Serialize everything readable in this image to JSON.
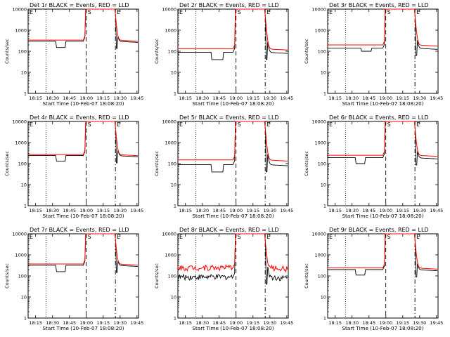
{
  "figure": {
    "description": "RHESSI detector count rates, 3x3 grid",
    "legend_text": "BLACK = Events, RED = LLD"
  },
  "chart_data": [
    {
      "type": "line",
      "title": "Det 1r BLACK = Events, RED = LLD",
      "xlabel": "Start Time (10-Feb-07 18:08:20)",
      "ylabel": "Counts/sec",
      "yscale": "log",
      "ylim": [
        1,
        10000
      ],
      "xticks": [
        "18:15",
        "18:30",
        "18:45",
        "19:00",
        "19:15",
        "19:30",
        "19:45"
      ],
      "yticks": [
        "1",
        "10",
        "100",
        "1000",
        "10000"
      ],
      "markers": [
        {
          "label": "E",
          "t": 0
        },
        {
          "label": "S",
          "t": 52
        },
        {
          "label": "E",
          "t": 82
        }
      ],
      "series": [
        {
          "name": "Events",
          "color": "#000000",
          "base": 300,
          "dip": [
            25,
            33,
            150
          ]
        },
        {
          "name": "LLD",
          "color": "#ff0000",
          "base": 340
        }
      ]
    },
    {
      "type": "line",
      "title": "Det 2r BLACK = Events, RED = LLD",
      "xlabel": "Start Time (10-Feb-07 18:08:20)",
      "ylabel": "Counts/sec",
      "yscale": "log",
      "ylim": [
        1,
        10000
      ],
      "xticks": [
        "18:15",
        "18:30",
        "18:45",
        "19:00",
        "19:15",
        "19:30",
        "19:45"
      ],
      "yticks": [
        "1",
        "10",
        "100",
        "1000",
        "10000"
      ],
      "markers": [
        {
          "label": "E",
          "t": 0
        },
        {
          "label": "S",
          "t": 52
        },
        {
          "label": "E",
          "t": 82
        }
      ],
      "series": [
        {
          "name": "Events",
          "color": "#000000",
          "base": 90,
          "dip": [
            30,
            40,
            40
          ]
        },
        {
          "name": "LLD",
          "color": "#ff0000",
          "base": 130
        }
      ]
    },
    {
      "type": "line",
      "title": "Det 3r BLACK = Events, RED = LLD",
      "xlabel": "Start Time (10-Feb-07 18:08:20)",
      "ylabel": "Counts/sec",
      "yscale": "log",
      "ylim": [
        1,
        10000
      ],
      "xticks": [
        "18:15",
        "18:30",
        "18:45",
        "19:00",
        "19:15",
        "19:30",
        "19:45"
      ],
      "yticks": [
        "1",
        "10",
        "100",
        "1000",
        "10000"
      ],
      "markers": [
        {
          "label": "E",
          "t": 0
        },
        {
          "label": "S",
          "t": 52
        },
        {
          "label": "E",
          "t": 82
        }
      ],
      "series": [
        {
          "name": "Events",
          "color": "#000000",
          "base": 140,
          "dip": [
            30,
            39,
            100
          ]
        },
        {
          "name": "LLD",
          "color": "#ff0000",
          "base": 200
        }
      ]
    },
    {
      "type": "line",
      "title": "Det 4r BLACK = Events, RED = LLD",
      "xlabel": "Start Time (10-Feb-07 18:08:20)",
      "ylabel": "Counts/sec",
      "yscale": "log",
      "ylim": [
        1,
        10000
      ],
      "xticks": [
        "18:15",
        "18:30",
        "18:45",
        "19:00",
        "19:15",
        "19:30",
        "19:45"
      ],
      "yticks": [
        "1",
        "10",
        "100",
        "1000",
        "10000"
      ],
      "markers": [
        {
          "label": "E",
          "t": 0
        },
        {
          "label": "S",
          "t": 52
        },
        {
          "label": "E",
          "t": 82
        }
      ],
      "series": [
        {
          "name": "Events",
          "color": "#000000",
          "base": 240,
          "dip": [
            25,
            33,
            130
          ]
        },
        {
          "name": "LLD",
          "color": "#ff0000",
          "base": 270
        }
      ]
    },
    {
      "type": "line",
      "title": "Det 5r BLACK = Events, RED = LLD",
      "xlabel": "Start Time (10-Feb-07 18:08:20)",
      "ylabel": "Counts/sec",
      "yscale": "log",
      "ylim": [
        1,
        10000
      ],
      "xticks": [
        "18:15",
        "18:30",
        "18:45",
        "19:00",
        "19:15",
        "19:30",
        "19:45"
      ],
      "yticks": [
        "1",
        "10",
        "100",
        "1000",
        "10000"
      ],
      "markers": [
        {
          "label": "E",
          "t": 0
        },
        {
          "label": "S",
          "t": 52
        },
        {
          "label": "E",
          "t": 82
        }
      ],
      "series": [
        {
          "name": "Events",
          "color": "#000000",
          "base": 90,
          "dip": [
            30,
            40,
            40
          ]
        },
        {
          "name": "LLD",
          "color": "#ff0000",
          "base": 150
        }
      ]
    },
    {
      "type": "line",
      "title": "Det 6r BLACK = Events, RED = LLD",
      "xlabel": "Start Time (10-Feb-07 18:08:20)",
      "ylabel": "Counts/sec",
      "yscale": "log",
      "ylim": [
        1,
        10000
      ],
      "xticks": [
        "18:15",
        "18:30",
        "18:45",
        "19:00",
        "19:15",
        "19:30",
        "19:45"
      ],
      "yticks": [
        "1",
        "10",
        "100",
        "1000",
        "10000"
      ],
      "markers": [
        {
          "label": "E",
          "t": 0
        },
        {
          "label": "S",
          "t": 52
        },
        {
          "label": "E",
          "t": 82
        }
      ],
      "series": [
        {
          "name": "Events",
          "color": "#000000",
          "base": 190,
          "dip": [
            25,
            33,
            100
          ]
        },
        {
          "name": "LLD",
          "color": "#ff0000",
          "base": 250
        }
      ]
    },
    {
      "type": "line",
      "title": "Det 7r BLACK = Events, RED = LLD",
      "xlabel": "Start Time (10-Feb-07 18:08:20)",
      "ylabel": "Counts/sec",
      "yscale": "log",
      "ylim": [
        1,
        10000
      ],
      "xticks": [
        "18:15",
        "18:30",
        "18:45",
        "19:00",
        "19:15",
        "19:30",
        "19:45"
      ],
      "yticks": [
        "1",
        "10",
        "100",
        "1000",
        "10000"
      ],
      "markers": [
        {
          "label": "E",
          "t": 0
        },
        {
          "label": "S",
          "t": 52
        },
        {
          "label": "E",
          "t": 82
        }
      ],
      "series": [
        {
          "name": "Events",
          "color": "#000000",
          "base": 320,
          "dip": [
            25,
            33,
            160
          ]
        },
        {
          "name": "LLD",
          "color": "#ff0000",
          "base": 370
        }
      ]
    },
    {
      "type": "line",
      "title": "Det 8r BLACK = Events, RED = LLD",
      "xlabel": "Start Time (10-Feb-07 18:08:20)",
      "ylabel": "Counts/sec",
      "yscale": "log",
      "ylim": [
        1,
        10000
      ],
      "xticks": [
        "18:15",
        "18:30",
        "18:45",
        "19:00",
        "19:15",
        "19:30",
        "19:45"
      ],
      "yticks": [
        "1",
        "10",
        "100",
        "1000",
        "10000"
      ],
      "markers": [
        {
          "label": "E",
          "t": 0
        },
        {
          "label": "S",
          "t": 52
        },
        {
          "label": "E",
          "t": 82
        }
      ],
      "series": [
        {
          "name": "Events",
          "color": "#000000",
          "base": 90,
          "noisy": true
        },
        {
          "name": "LLD",
          "color": "#ff0000",
          "base": 250,
          "noisy": true
        }
      ]
    },
    {
      "type": "line",
      "title": "Det 9r BLACK = Events, RED = LLD",
      "xlabel": "Start Time (10-Feb-07 18:08:20)",
      "ylabel": "Counts/sec",
      "yscale": "log",
      "ylim": [
        1,
        10000
      ],
      "xticks": [
        "18:15",
        "18:30",
        "18:45",
        "19:00",
        "19:15",
        "19:30",
        "19:45"
      ],
      "yticks": [
        "1",
        "10",
        "100",
        "1000",
        "10000"
      ],
      "markers": [
        {
          "label": "E",
          "t": 0
        },
        {
          "label": "S",
          "t": 52
        },
        {
          "label": "E",
          "t": 82
        }
      ],
      "series": [
        {
          "name": "Events",
          "color": "#000000",
          "base": 200,
          "dip": [
            25,
            33,
            110
          ]
        },
        {
          "name": "LLD",
          "color": "#ff0000",
          "base": 240
        }
      ]
    }
  ]
}
